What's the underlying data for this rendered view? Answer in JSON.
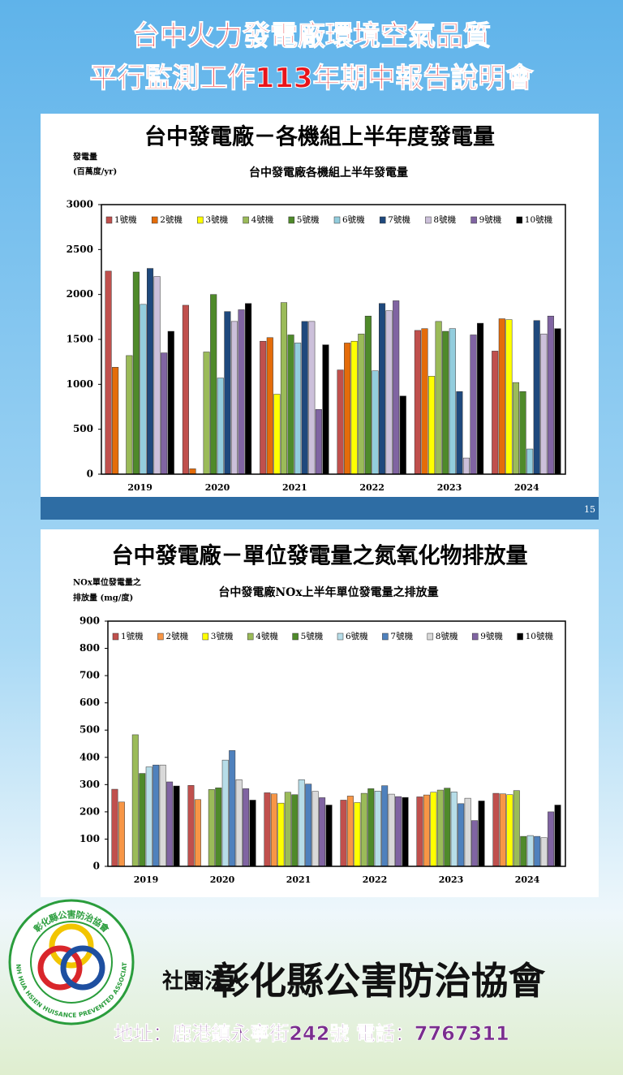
{
  "header": {
    "line1": "台中火力發電廠環境空氣品質",
    "line2": "平行監測工作113年期中報告說明會"
  },
  "chart_data": [
    {
      "type": "bar",
      "slide_title": "台中發電廠－各機組上半年度發電量",
      "title": "台中發電廠各機組上半年發電量",
      "y_label": [
        "發電量",
        "(百萬度/yr)"
      ],
      "page_number": "15",
      "categories": [
        "2019",
        "2020",
        "2021",
        "2022",
        "2023",
        "2024"
      ],
      "series": [
        {
          "name": "1號機",
          "color": "#c0504d",
          "values": [
            2260,
            1880,
            1480,
            1160,
            1600,
            1370
          ]
        },
        {
          "name": "2號機",
          "color": "#e46c0a",
          "values": [
            1190,
            60,
            1520,
            1460,
            1620,
            1730
          ]
        },
        {
          "name": "3號機",
          "color": "#ffff00",
          "values": [
            null,
            null,
            890,
            1480,
            1090,
            1720
          ]
        },
        {
          "name": "4號機",
          "color": "#9bbb59",
          "values": [
            1320,
            1360,
            1910,
            1560,
            1700,
            1020
          ]
        },
        {
          "name": "5號機",
          "color": "#4f8a2a",
          "values": [
            2250,
            2000,
            1550,
            1760,
            1590,
            920
          ]
        },
        {
          "name": "6號機",
          "color": "#93cddd",
          "values": [
            1890,
            1070,
            1460,
            1150,
            1620,
            280
          ]
        },
        {
          "name": "7號機",
          "color": "#1f497d",
          "values": [
            2290,
            1810,
            1700,
            1900,
            920,
            1710
          ]
        },
        {
          "name": "8號機",
          "color": "#ccc0da",
          "values": [
            2200,
            1700,
            1700,
            1820,
            180,
            1560
          ]
        },
        {
          "name": "9號機",
          "color": "#8064a2",
          "values": [
            1350,
            1830,
            720,
            1930,
            1550,
            1760
          ]
        },
        {
          "name": "10號機",
          "color": "#000000",
          "values": [
            1590,
            1900,
            1440,
            870,
            1680,
            1620
          ]
        }
      ],
      "ylim": [
        0,
        3000
      ],
      "yticks": [
        0,
        500,
        1000,
        1500,
        2000,
        2500,
        3000
      ],
      "legend": "top"
    },
    {
      "type": "bar",
      "slide_title": "台中發電廠－單位發電量之氮氧化物排放量",
      "title": "台中發電廠NOx上半年單位發電量之排放量",
      "y_label": [
        "NOx單位發電量之",
        "排放量 (mg/度)"
      ],
      "categories": [
        "2019",
        "2020",
        "2021",
        "2022",
        "2023",
        "2024"
      ],
      "series": [
        {
          "name": "1號機",
          "color": "#c0504d",
          "values": [
            283,
            297,
            270,
            243,
            255,
            268
          ]
        },
        {
          "name": "2號機",
          "color": "#f79646",
          "values": [
            236,
            245,
            266,
            258,
            262,
            266
          ]
        },
        {
          "name": "3號機",
          "color": "#ffff00",
          "values": [
            null,
            null,
            232,
            234,
            272,
            263
          ]
        },
        {
          "name": "4號機",
          "color": "#9bbb59",
          "values": [
            483,
            282,
            272,
            268,
            280,
            278
          ]
        },
        {
          "name": "5號機",
          "color": "#4f8a2a",
          "values": [
            341,
            288,
            263,
            285,
            287,
            110
          ]
        },
        {
          "name": "6號機",
          "color": "#b7dde8",
          "values": [
            365,
            390,
            318,
            276,
            273,
            113
          ]
        },
        {
          "name": "7號機",
          "color": "#4f81bd",
          "values": [
            372,
            425,
            302,
            296,
            230,
            110
          ]
        },
        {
          "name": "8號機",
          "color": "#d9d9d9",
          "values": [
            372,
            318,
            275,
            265,
            250,
            105
          ]
        },
        {
          "name": "9號機",
          "color": "#8064a2",
          "values": [
            310,
            285,
            252,
            256,
            168,
            200
          ]
        },
        {
          "name": "10號機",
          "color": "#000000",
          "values": [
            295,
            243,
            225,
            253,
            240,
            225
          ]
        }
      ],
      "ylim": [
        0,
        900
      ],
      "yticks": [
        0,
        100,
        200,
        300,
        400,
        500,
        600,
        700,
        800,
        900
      ],
      "legend": "top"
    }
  ],
  "footer": {
    "logo_ring_cn": "彰化縣公害防治協會",
    "logo_ring_en": "CHANH HUA HSIEN HUISANCE PREVENTED ASSOCIATION",
    "org_type": "社團法人",
    "org_name": "彰化縣公害防治協會",
    "address": "地址：鹿港鎮永寧街242號 電話：7767311"
  }
}
